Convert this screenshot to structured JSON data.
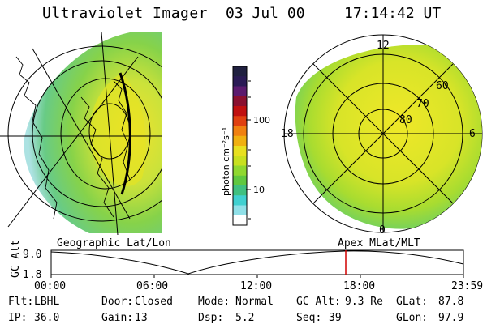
{
  "header": {
    "title": "Ultraviolet Imager",
    "date": "03 Jul 00",
    "time": "17:14:42 UT"
  },
  "colorbar": {
    "unit_label": "photon cm⁻²s⁻¹",
    "ticks": [
      "100",
      "10"
    ],
    "colors": [
      "#202040",
      "#2a1a55",
      "#5b1a6e",
      "#8a1030",
      "#c01010",
      "#e04010",
      "#f08010",
      "#f0b010",
      "#e8e020",
      "#c8e020",
      "#90d830",
      "#60c840",
      "#40c080",
      "#40d0d0",
      "#90e0e8",
      "#ffffff"
    ]
  },
  "polar_plot": {
    "mlt_labels": [
      "12",
      "18",
      "6",
      "0"
    ],
    "lat_labels": [
      "60",
      "70",
      "80"
    ]
  },
  "timeline": {
    "ylabel": "GC Alt",
    "y_ticks": [
      "9.0",
      "1.8"
    ],
    "left_label": "Geographic Lat/Lon",
    "right_label": "Apex MLat/MLT",
    "x_ticks": [
      "00:00",
      "06:00",
      "12:00",
      "18:00",
      "23:59"
    ]
  },
  "footer": {
    "row1": [
      {
        "label": "Flt:",
        "value": "LBHL"
      },
      {
        "label": "Door:",
        "value": "Closed"
      },
      {
        "label": "Mode:",
        "value": "Normal"
      },
      {
        "label": "GC Alt:",
        "value": "9.3 Re"
      },
      {
        "label": "GLat:",
        "value": "87.8"
      }
    ],
    "row2": [
      {
        "label": "IP:",
        "value": "36.0"
      },
      {
        "label": "Gain:",
        "value": "13"
      },
      {
        "label": "Dsp:",
        "value": "5.2"
      },
      {
        "label": "Seq:",
        "value": "39"
      },
      {
        "label": "GLon:",
        "value": "97.9"
      }
    ]
  }
}
